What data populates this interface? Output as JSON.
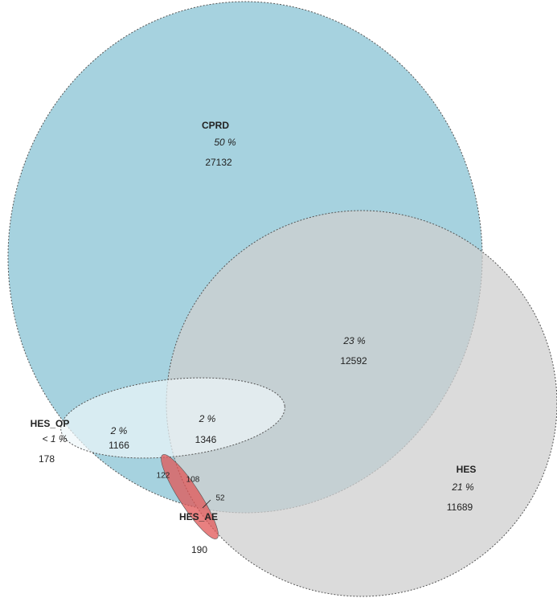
{
  "sets": [
    {
      "label": "CPRD"
    },
    {
      "label": "HES"
    },
    {
      "label": "HES_OP"
    },
    {
      "label": "HES_AE"
    }
  ],
  "regions": [
    {
      "percent": "50 %",
      "count": 27132
    },
    {
      "percent": "23 %",
      "count": 12592
    },
    {
      "percent": "21 %",
      "count": 11689
    },
    {
      "percent": "2 %",
      "count": 1166
    },
    {
      "percent": "2 %",
      "count": 1346
    },
    {
      "percent": "< 1 %",
      "count": 178
    },
    {
      "count": 122
    },
    {
      "count": 108
    },
    {
      "count": 52
    },
    {
      "count": 190
    }
  ]
}
